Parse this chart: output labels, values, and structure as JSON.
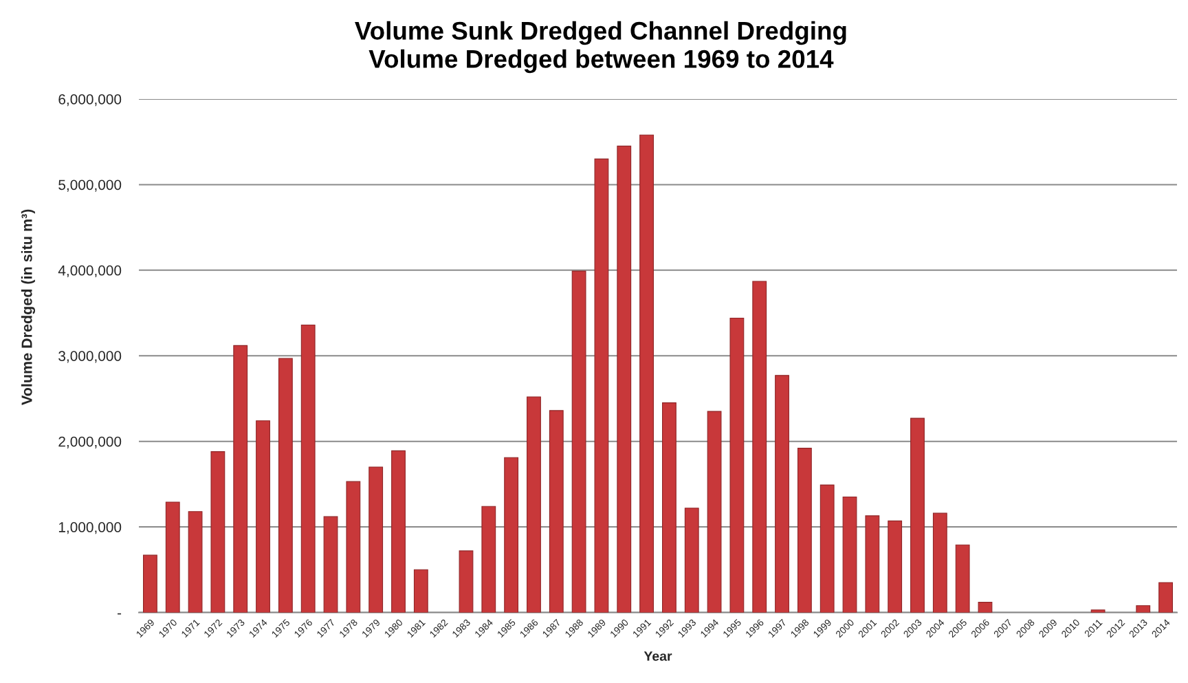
{
  "chart_data": {
    "type": "bar",
    "title": "Volume Sunk Dredged Channel Dredging",
    "subtitle": "Volume Dredged between 1969 to 2014",
    "xlabel": "Year",
    "ylabel": "Volume Dredged (in situ m³)",
    "categories": [
      "1969",
      "1970",
      "1971",
      "1972",
      "1973",
      "1974",
      "1975",
      "1976",
      "1977",
      "1978",
      "1979",
      "1980",
      "1981",
      "1982",
      "1983",
      "1984",
      "1985",
      "1986",
      "1987",
      "1988",
      "1989",
      "1990",
      "1991",
      "1992",
      "1993",
      "1994",
      "1995",
      "1996",
      "1997",
      "1998",
      "1999",
      "2000",
      "2001",
      "2002",
      "2003",
      "2004",
      "2005",
      "2006",
      "2007",
      "2008",
      "2009",
      "2010",
      "2011",
      "2012",
      "2013",
      "2014"
    ],
    "values": [
      670000,
      1290000,
      1180000,
      1880000,
      3120000,
      2240000,
      2970000,
      3360000,
      1120000,
      1530000,
      1700000,
      1890000,
      500000,
      null,
      720000,
      1240000,
      1810000,
      2520000,
      2360000,
      3990000,
      5300000,
      5450000,
      5580000,
      2450000,
      1220000,
      2350000,
      3440000,
      3870000,
      2770000,
      1920000,
      1490000,
      1350000,
      1130000,
      1070000,
      2270000,
      1160000,
      790000,
      120000,
      null,
      null,
      null,
      null,
      30000,
      null,
      80000,
      350000
    ],
    "color": "#c8383a",
    "ylim": [
      0,
      6000000
    ],
    "yticks": [
      {
        "value": 0,
        "label": "-"
      },
      {
        "value": 1000000,
        "label": "1,000,000"
      },
      {
        "value": 2000000,
        "label": "2,000,000"
      },
      {
        "value": 3000000,
        "label": "3,000,000"
      },
      {
        "value": 4000000,
        "label": "4,000,000"
      },
      {
        "value": 5000000,
        "label": "5,000,000"
      },
      {
        "value": 6000000,
        "label": "6,000,000"
      }
    ],
    "grid": "y"
  }
}
